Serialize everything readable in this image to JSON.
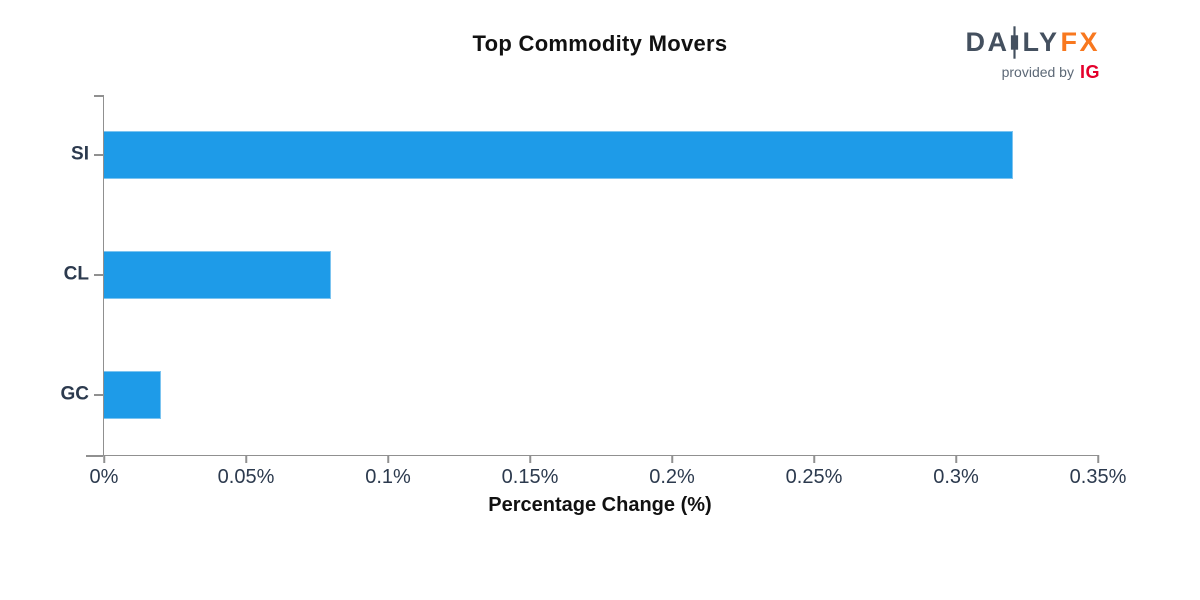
{
  "logo": {
    "text_da": "DA",
    "text_ly": "LY",
    "text_fx": "FX",
    "provided_by": "provided by",
    "ig": "IG"
  },
  "chart_data": {
    "type": "bar",
    "orientation": "horizontal",
    "title": "Top Commodity Movers",
    "xlabel": "Percentage Change (%)",
    "categories": [
      "SI",
      "CL",
      "GC"
    ],
    "values": [
      0.32,
      0.08,
      0.02
    ],
    "value_unit": "%",
    "xlim": [
      0,
      0.35
    ],
    "xticks": [
      0,
      0.05,
      0.1,
      0.15,
      0.2,
      0.25,
      0.3,
      0.35
    ],
    "xtick_labels": [
      "0%",
      "0.05%",
      "0.1%",
      "0.15%",
      "0.2%",
      "0.25%",
      "0.3%",
      "0.35%"
    ],
    "grid": false,
    "legend": false,
    "colors": {
      "bar_fill": "#1E9BE8",
      "bar_edge": "#7CC4F0",
      "axis": "#909090",
      "tick_label": "#2C3A4E",
      "title": "#111111",
      "logo_slate": "#44505F",
      "logo_orange": "#F8781F",
      "logo_red": "#E4002B",
      "background": "#FFFFFF"
    }
  }
}
